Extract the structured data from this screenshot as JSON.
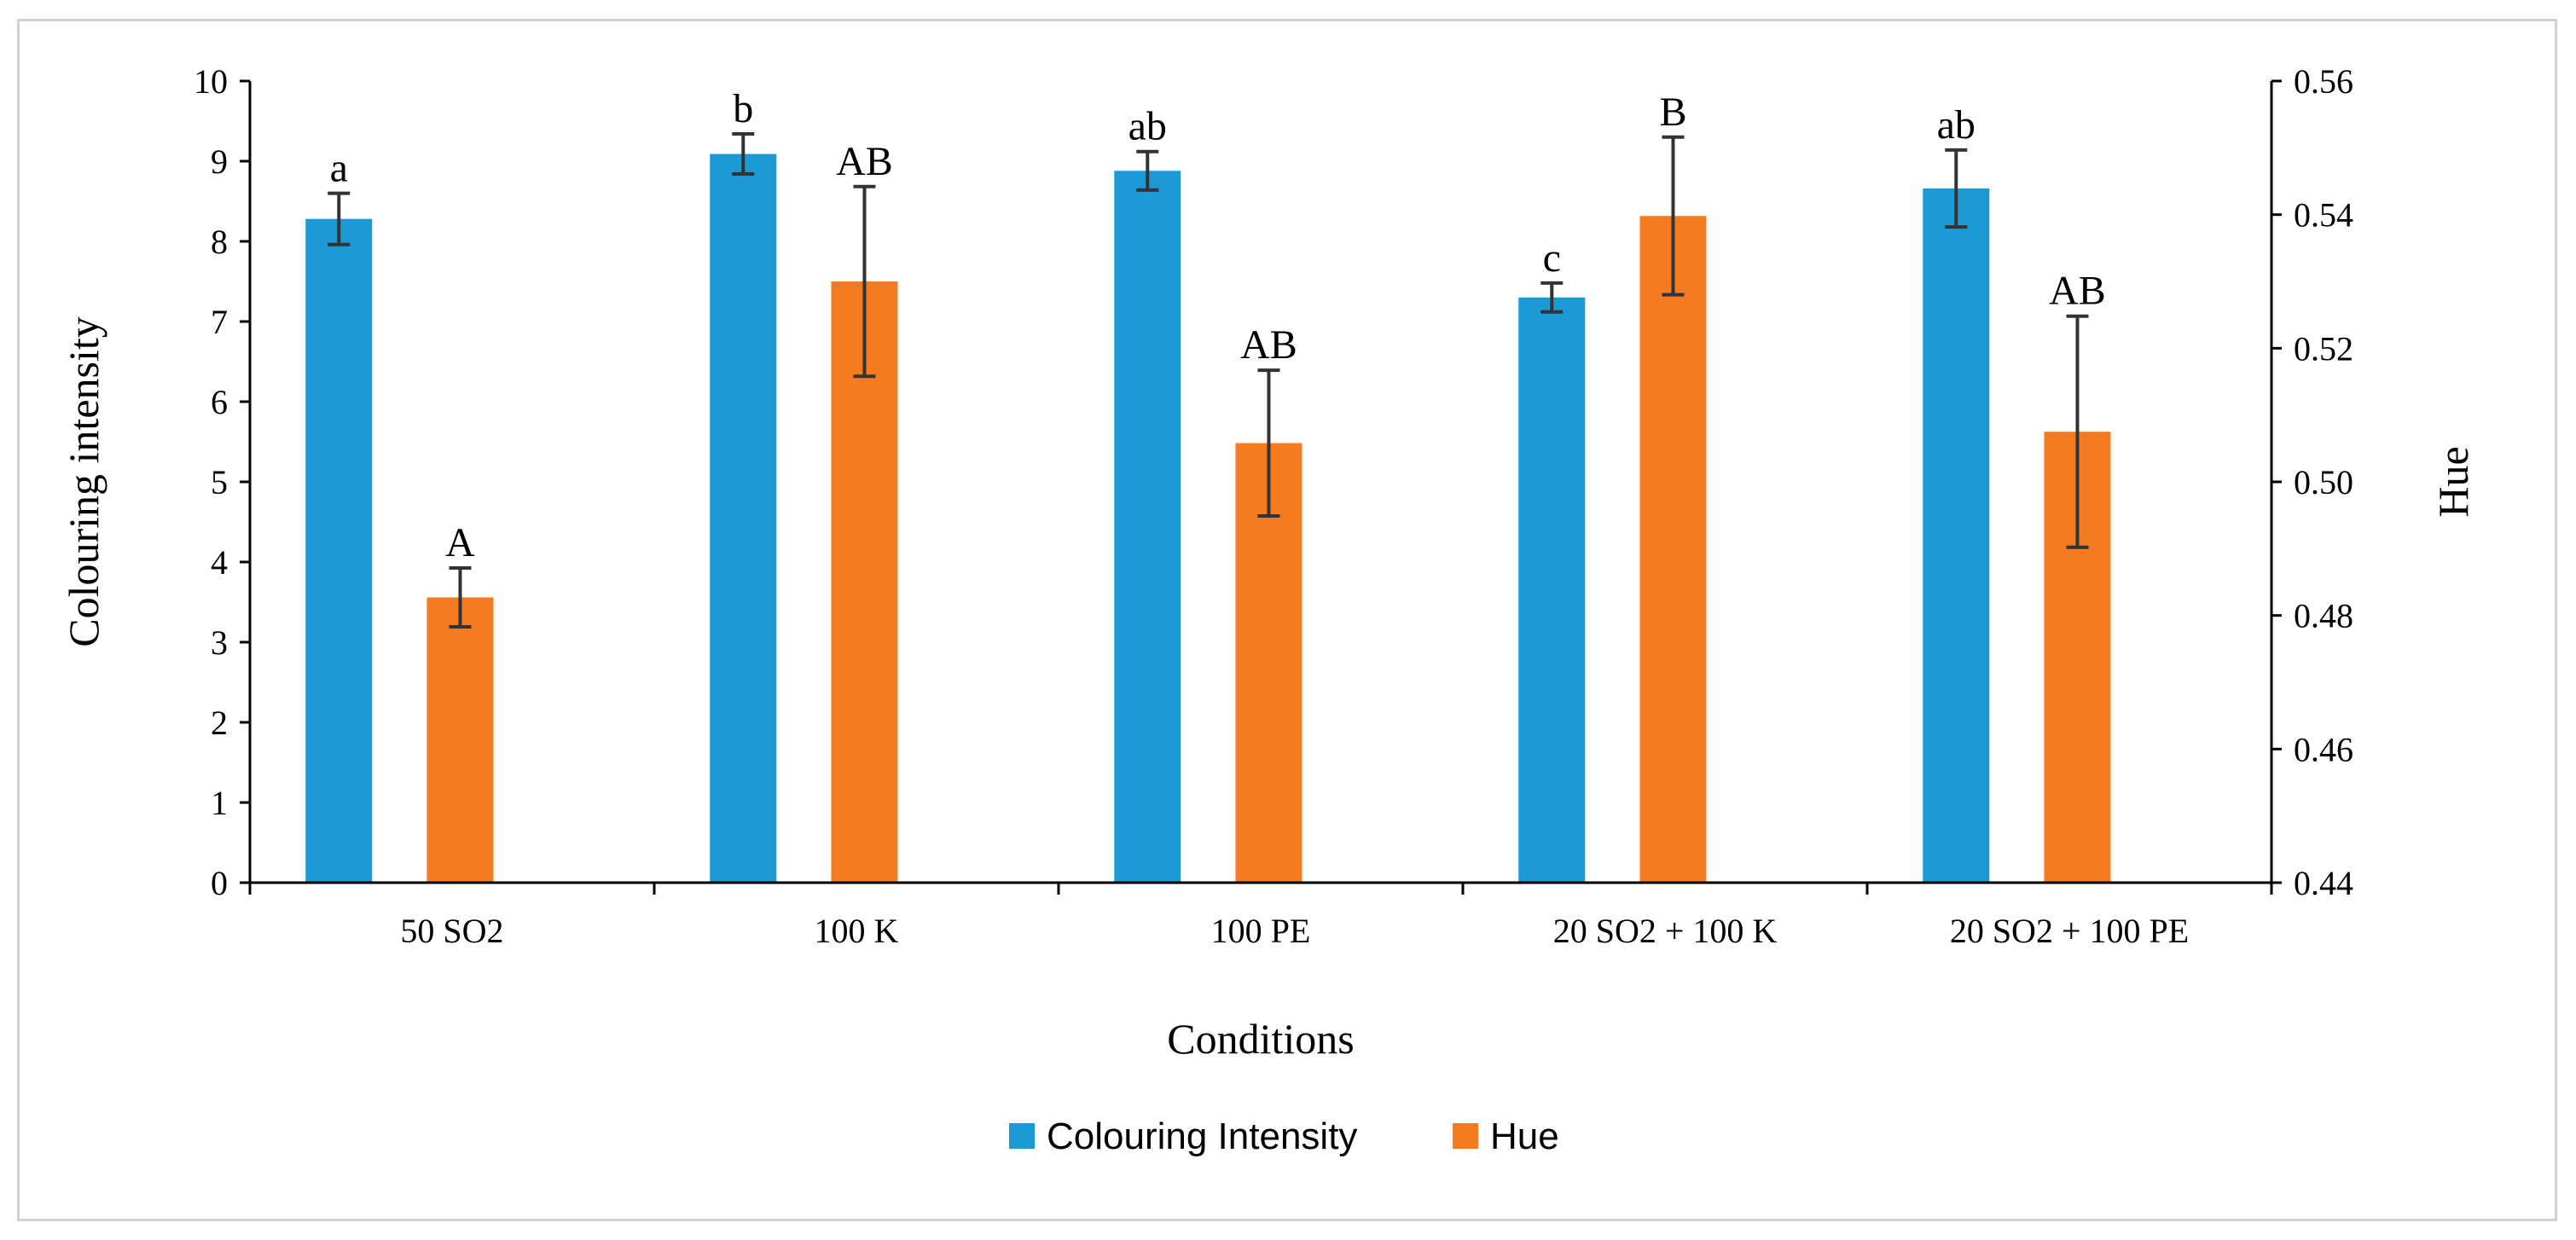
{
  "chart_data": {
    "type": "bar",
    "title": "",
    "xlabel": "Conditions",
    "ylabel": "Colouring intensity",
    "y2label": "Hue",
    "categories": [
      "50 SO2",
      "100 K",
      "100 PE",
      "20 SO2 + 100 K",
      "20 SO2 + 100 PE"
    ],
    "ylim": [
      0,
      10
    ],
    "yticks": [
      "0",
      "1",
      "2",
      "3",
      "4",
      "5",
      "6",
      "7",
      "8",
      "9",
      "10"
    ],
    "y2lim": [
      0.44,
      0.56
    ],
    "y2ticks": [
      "0.44",
      "0.46",
      "0.48",
      "0.50",
      "0.52",
      "0.54",
      "0.56"
    ],
    "legend_position": "bottom",
    "colors": {
      "intensity": "#1b9ad6",
      "hue": "#f47b20",
      "error_bar": "#333333",
      "axis": "#000000"
    },
    "series": [
      {
        "name": "Colouring Intensity",
        "axis": "left",
        "values": [
          8.28,
          9.09,
          8.88,
          7.3,
          8.66
        ],
        "errors": [
          0.32,
          0.25,
          0.24,
          0.18,
          0.48
        ],
        "group_labels": [
          "a",
          "b",
          "ab",
          "c",
          "ab"
        ]
      },
      {
        "name": "Hue",
        "axis": "right",
        "values": [
          0.4827,
          0.53,
          0.5058,
          0.5398,
          0.5075
        ],
        "errors": [
          0.0044,
          0.0142,
          0.0109,
          0.0118,
          0.0173
        ],
        "group_labels": [
          "A",
          "AB",
          "AB",
          "B",
          "AB"
        ]
      }
    ]
  }
}
